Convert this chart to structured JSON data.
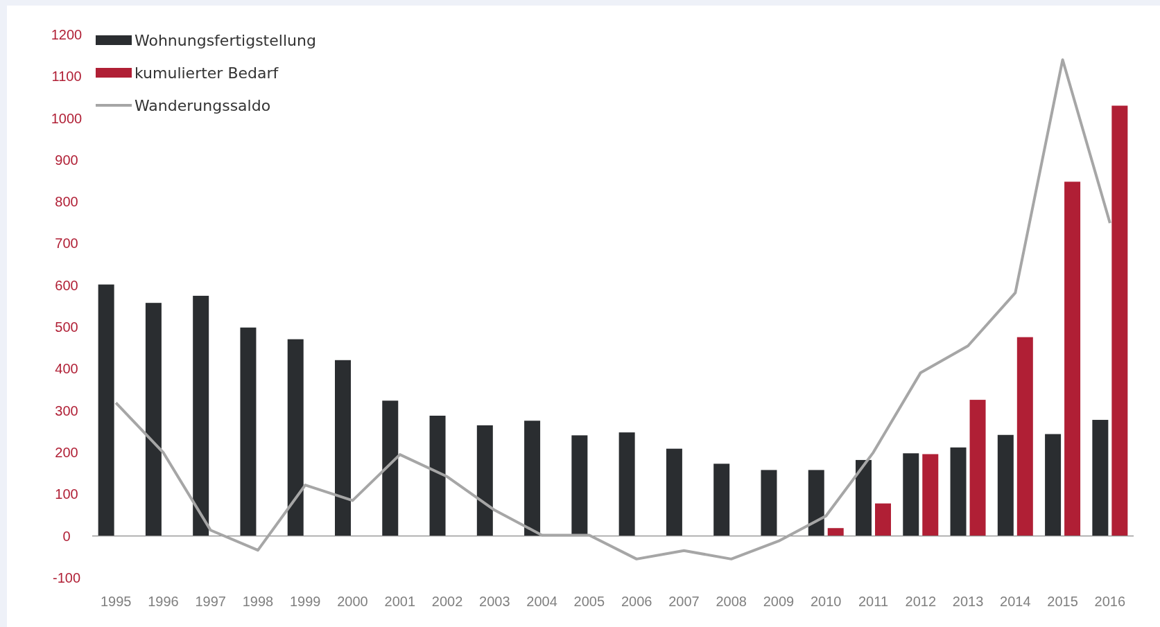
{
  "chart_data": {
    "type": "bar",
    "categories": [
      "1995",
      "1996",
      "1997",
      "1998",
      "1999",
      "2000",
      "2001",
      "2002",
      "2003",
      "2004",
      "2005",
      "2006",
      "2007",
      "2008",
      "2009",
      "2010",
      "2011",
      "2012",
      "2013",
      "2014",
      "2015",
      "2016"
    ],
    "series": [
      {
        "name": "Wohnungsfertigstellung",
        "color": "#2a2d30",
        "values": [
          602,
          558,
          575,
          499,
          471,
          421,
          324,
          288,
          265,
          276,
          241,
          248,
          209,
          173,
          158,
          158,
          182,
          198,
          212,
          242,
          244,
          278
        ]
      },
      {
        "name": "kumulierter Bedarf",
        "color": "#b01f35",
        "values": [
          null,
          null,
          null,
          null,
          null,
          null,
          null,
          null,
          null,
          null,
          null,
          null,
          null,
          null,
          null,
          19,
          78,
          196,
          326,
          476,
          848,
          1030
        ]
      },
      {
        "name": "Wanderungssaldo",
        "type": "line",
        "color": "#a6a6a6",
        "values": [
          319,
          200,
          14,
          -34,
          122,
          85,
          195,
          142,
          62,
          2,
          2,
          -55,
          -35,
          -55,
          -12,
          48,
          200,
          391,
          455,
          582,
          1140,
          749
        ]
      }
    ],
    "ylim": [
      -100,
      1200
    ],
    "yticks": [
      -100,
      0,
      100,
      200,
      300,
      400,
      500,
      600,
      700,
      800,
      900,
      1000,
      1100,
      1200
    ],
    "legend": "top left",
    "marker": "none"
  }
}
